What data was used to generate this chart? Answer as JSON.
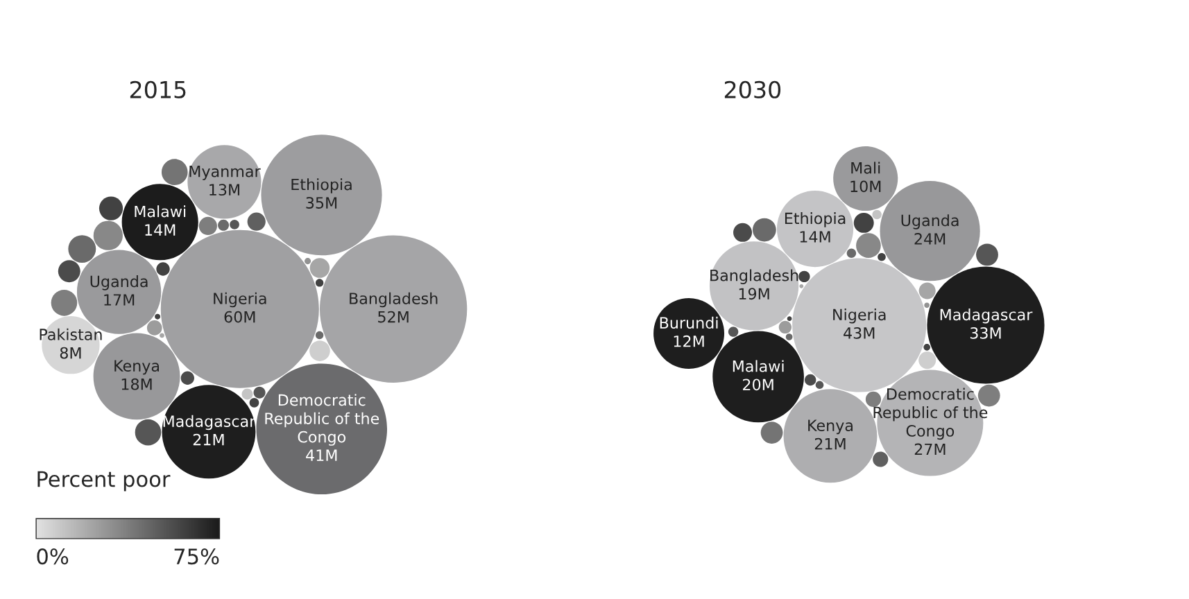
{
  "chart_data": [
    {
      "type": "other",
      "title": "2015",
      "clabel": "Percent poor",
      "annotations": [
        "0%",
        "75%"
      ],
      "categories": [
        "Nigeria",
        "Bangladesh",
        "Democratic Republic of the Congo",
        "Ethiopia",
        "Madagascar",
        "Kenya",
        "Uganda",
        "Malawi",
        "Myanmar",
        "Pakistan"
      ],
      "values": [
        60,
        52,
        41,
        35,
        21,
        18,
        17,
        14,
        13,
        8
      ],
      "value_labels": [
        "60M",
        "52M",
        "41M",
        "35M",
        "21M",
        "18M",
        "17M",
        "14M",
        "13M",
        "8M"
      ],
      "colors": [
        "#a0a0a2",
        "#a5a5a7",
        "#6b6b6d",
        "#9d9d9f",
        "#1e1e1e",
        "#98989a",
        "#9a9a9c",
        "#1c1c1c",
        "#a8a8aa",
        "#d6d6d6"
      ]
    },
    {
      "type": "other",
      "title": "2030",
      "categories": [
        "Nigeria",
        "Madagascar",
        "Democratic Republic of the Congo",
        "Uganda",
        "Kenya",
        "Malawi",
        "Bangladesh",
        "Ethiopia",
        "Burundi",
        "Mali"
      ],
      "values": [
        43,
        33,
        27,
        24,
        21,
        20,
        19,
        14,
        12,
        10
      ],
      "value_labels": [
        "43M",
        "33M",
        "27M",
        "24M",
        "21M",
        "20M",
        "19M",
        "14M",
        "12M",
        "10M"
      ],
      "colors": [
        "#c6c6c8",
        "#1e1e1e",
        "#b4b4b6",
        "#98989a",
        "#aeaeb0",
        "#1e1e1e",
        "#c2c2c4",
        "#c4c4c6",
        "#1e1e1e",
        "#9a9a9c"
      ]
    }
  ]
}
